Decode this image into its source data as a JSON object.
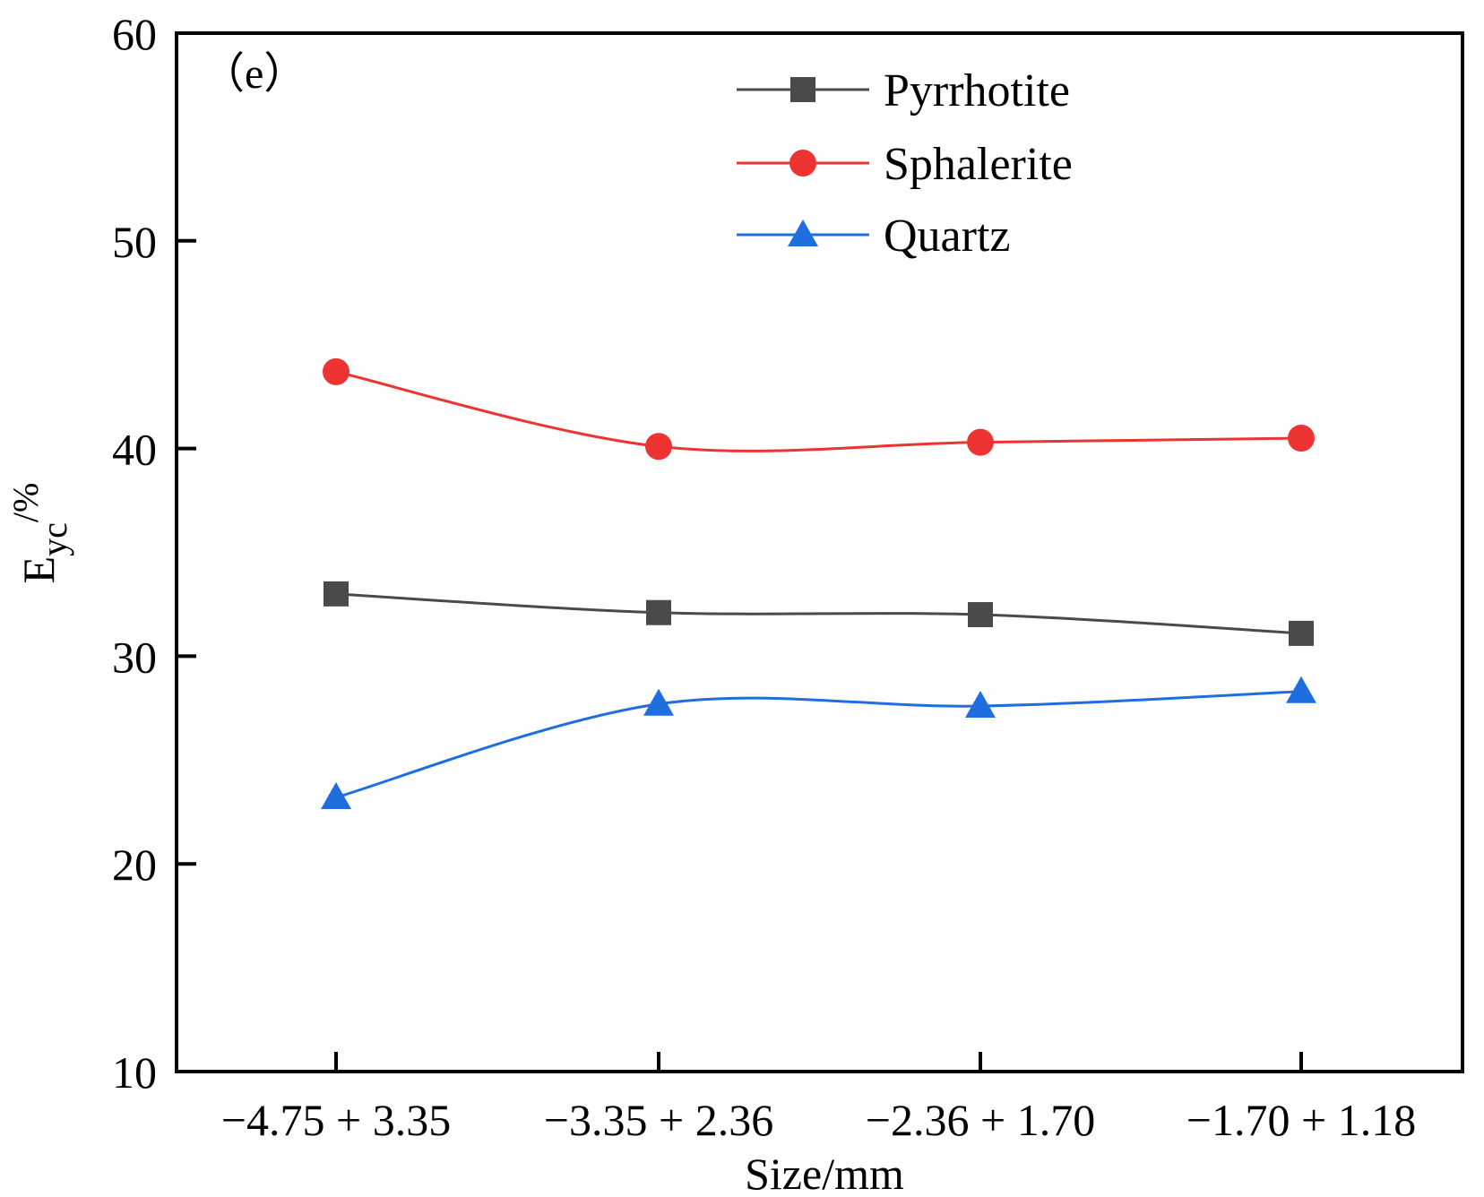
{
  "chart_data": {
    "type": "line",
    "panel_label": "（e）",
    "title": "",
    "xlabel": "Size/mm",
    "ylabel_main": "E",
    "ylabel_sub": "yc",
    "ylabel_suffix": "/%",
    "categories": [
      "−4.75 + 3.35",
      "−3.35 + 2.36",
      "−2.36 + 1.70",
      "−1.70 + 1.18"
    ],
    "ylim": [
      10,
      60
    ],
    "yticks": [
      "10",
      "20",
      "30",
      "40",
      "50",
      "60"
    ],
    "grid": false,
    "legend_position": "top-right",
    "series": [
      {
        "name": "Pyrrhotite",
        "marker": "square",
        "color": "#4a4a4a",
        "values": [
          33.0,
          32.1,
          32.0,
          31.1
        ]
      },
      {
        "name": "Sphalerite",
        "marker": "circle",
        "color": "#ee3333",
        "values": [
          43.7,
          40.1,
          40.3,
          40.5
        ]
      },
      {
        "name": "Quartz",
        "marker": "triangle",
        "color": "#1f6ee0",
        "values": [
          23.2,
          27.7,
          27.6,
          28.3
        ]
      }
    ]
  }
}
